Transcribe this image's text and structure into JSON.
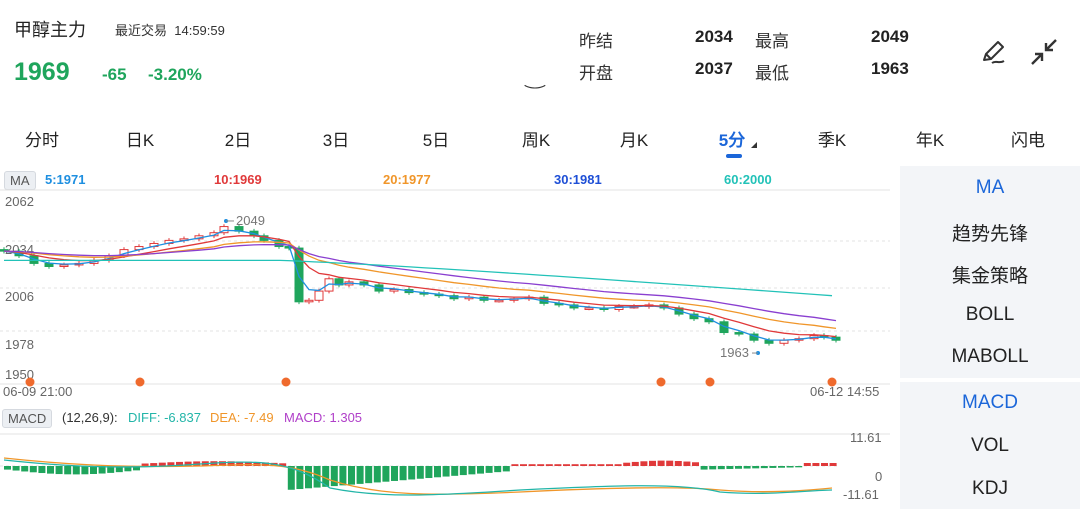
{
  "header": {
    "title": "甲醇主力",
    "recent_label": "最近交易",
    "time": "14:59:59",
    "price": "1969",
    "change": "-65",
    "change_pct": "-3.20%",
    "stats": {
      "prev_settle_label": "昨结",
      "prev_settle": "2034",
      "high_label": "最高",
      "high": "2049",
      "open_label": "开盘",
      "open": "2037",
      "low_label": "最低",
      "low": "1963"
    }
  },
  "tabs": [
    "分时",
    "日K",
    "2日",
    "3日",
    "5日",
    "周K",
    "月K",
    "5分",
    "季K",
    "年K",
    "闪电"
  ],
  "active_tab_index": 7,
  "ma": {
    "tag": "MA",
    "items": [
      {
        "label": "5:1971",
        "color": "#1e8fe0"
      },
      {
        "label": "10:1969",
        "color": "#e0393a"
      },
      {
        "label": "20:1977",
        "color": "#f0962a"
      },
      {
        "label": "30:1981",
        "color": "#1e4fd6"
      },
      {
        "label": "60:2000",
        "color": "#22c2b8"
      }
    ]
  },
  "main_chart": {
    "y_labels": [
      "2062",
      "2034",
      "2006",
      "1978",
      "1950"
    ],
    "x_start": "06-09 21:00",
    "x_end": "06-12 14:55",
    "high_marker": "2049",
    "low_marker": "1963"
  },
  "macd": {
    "tag": "MACD",
    "params": "(12,26,9):",
    "diff": "DIFF: -6.837",
    "dea": "DEA: -7.49",
    "macd": "MACD: 1.305",
    "y_top": "11.61",
    "y_mid": "0",
    "y_bot": "-11.61"
  },
  "right_menu": {
    "main_indicators": [
      "MA",
      "趋势先锋",
      "集金策略",
      "BOLL",
      "MABOLL"
    ],
    "sub_indicators": [
      "MACD",
      "VOL",
      "KDJ"
    ]
  },
  "colors": {
    "up": "#e0393a",
    "down": "#1fa55c",
    "accent": "#1b66d9",
    "marker": "#ef6a2d"
  },
  "icons": {
    "edit": "pen-draw-icon",
    "collapse": "collapse-arrows-icon"
  }
}
